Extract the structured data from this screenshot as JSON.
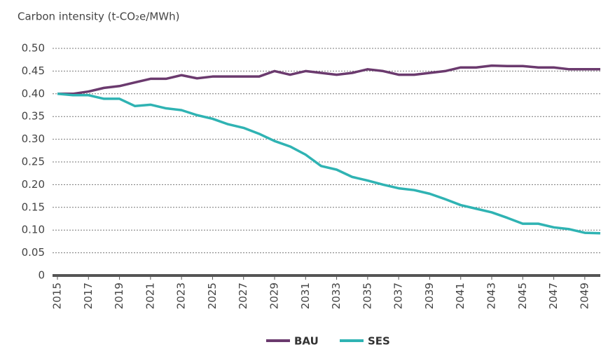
{
  "chart_data": {
    "type": "line",
    "title": "Carbon intensity (t-CO₂e/MWh)",
    "x": [
      2015,
      2016,
      2017,
      2018,
      2019,
      2020,
      2021,
      2022,
      2023,
      2024,
      2025,
      2026,
      2027,
      2028,
      2029,
      2030,
      2031,
      2032,
      2033,
      2034,
      2035,
      2036,
      2037,
      2038,
      2039,
      2040,
      2041,
      2042,
      2043,
      2044,
      2045,
      2046,
      2047,
      2048,
      2049,
      2050
    ],
    "series": [
      {
        "name": "BAU",
        "color": "#6b3a6e",
        "values": [
          0.4,
          0.4,
          0.405,
          0.413,
          0.417,
          0.425,
          0.433,
          0.433,
          0.441,
          0.434,
          0.438,
          0.438,
          0.438,
          0.438,
          0.45,
          0.442,
          0.45,
          0.446,
          0.442,
          0.446,
          0.454,
          0.45,
          0.442,
          0.442,
          0.446,
          0.45,
          0.458,
          0.458,
          0.462,
          0.461,
          0.461,
          0.458,
          0.458,
          0.454,
          0.454,
          0.454
        ]
      },
      {
        "name": "SES",
        "color": "#2fb3b3",
        "values": [
          0.4,
          0.397,
          0.397,
          0.389,
          0.389,
          0.373,
          0.376,
          0.368,
          0.364,
          0.353,
          0.345,
          0.333,
          0.325,
          0.312,
          0.296,
          0.284,
          0.266,
          0.241,
          0.233,
          0.217,
          0.209,
          0.2,
          0.192,
          0.188,
          0.18,
          0.168,
          0.155,
          0.147,
          0.139,
          0.127,
          0.114,
          0.114,
          0.106,
          0.102,
          0.094,
          0.093
        ]
      }
    ],
    "xlim": [
      2015,
      2050
    ],
    "xticks": [
      2015,
      2017,
      2019,
      2021,
      2023,
      2025,
      2027,
      2029,
      2031,
      2033,
      2035,
      2037,
      2039,
      2041,
      2043,
      2045,
      2047,
      2049
    ],
    "ylim": [
      0,
      0.5
    ],
    "yticks": [
      0,
      {
        "value": 0.05,
        "label": "0.05"
      },
      {
        "value": 0.1,
        "label": "0.10"
      },
      {
        "value": 0.15,
        "label": "0.15"
      },
      {
        "value": 0.2,
        "label": "0.20"
      },
      {
        "value": 0.25,
        "label": "0.25"
      },
      {
        "value": 0.3,
        "label": "0.30"
      },
      {
        "value": 0.35,
        "label": "0.35"
      },
      {
        "value": 0.4,
        "label": "0.40"
      },
      {
        "value": 0.45,
        "label": "0.45"
      },
      {
        "value": 0.5,
        "label": "0.50"
      }
    ],
    "grid": true
  }
}
